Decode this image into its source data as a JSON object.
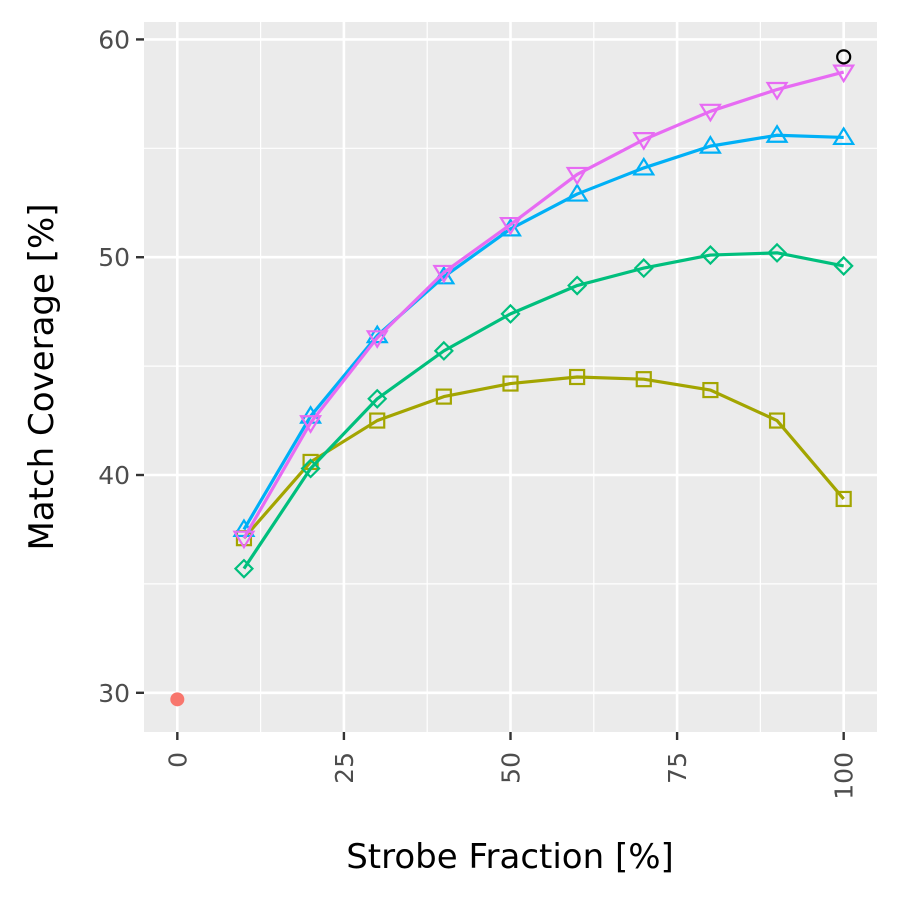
{
  "chart_data": {
    "type": "line",
    "title": "",
    "xlabel": "Strobe Fraction [%]",
    "ylabel": "Match Coverage [%]",
    "xlim": [
      -5,
      105
    ],
    "ylim": [
      28.2,
      60.8
    ],
    "x_ticks": [
      0,
      25,
      50,
      75,
      100
    ],
    "y_ticks": [
      30,
      40,
      50,
      60
    ],
    "x_tick_labels": [
      "0",
      "25",
      "50",
      "75",
      "100"
    ],
    "y_tick_labels": [
      "30",
      "40",
      "50",
      "60"
    ],
    "grid": true,
    "panel_background": "#ebebeb",
    "legend": "none",
    "series": [
      {
        "marker": "square",
        "color": "#a3a500",
        "x": [
          10,
          20,
          30,
          40,
          50,
          60,
          70,
          80,
          90,
          100
        ],
        "y": [
          37.1,
          40.6,
          42.5,
          43.6,
          44.2,
          44.5,
          44.4,
          43.9,
          42.5,
          38.9
        ]
      },
      {
        "marker": "diamond",
        "color": "#00bf7d",
        "x": [
          10,
          20,
          30,
          40,
          50,
          60,
          70,
          80,
          90,
          100
        ],
        "y": [
          35.7,
          40.3,
          43.5,
          45.7,
          47.4,
          48.7,
          49.5,
          50.1,
          50.2,
          49.6
        ]
      },
      {
        "marker": "triangle-up",
        "color": "#00b0f6",
        "x": [
          10,
          20,
          30,
          40,
          50,
          60,
          70,
          80,
          90,
          100
        ],
        "y": [
          37.5,
          42.7,
          46.4,
          49.1,
          51.3,
          52.9,
          54.1,
          55.1,
          55.6,
          55.5
        ]
      },
      {
        "marker": "triangle-down",
        "color": "#e76bf3",
        "x": [
          10,
          20,
          30,
          40,
          50,
          60,
          70,
          80,
          90,
          100
        ],
        "y": [
          37.1,
          42.4,
          46.3,
          49.3,
          51.5,
          53.8,
          55.4,
          56.7,
          57.7,
          58.5
        ]
      },
      {
        "marker": "dot",
        "color": "#f8766d",
        "x": [
          0
        ],
        "y": [
          29.7
        ]
      },
      {
        "marker": "circle",
        "color": "#000000",
        "x": [
          100
        ],
        "y": [
          59.2
        ]
      }
    ]
  }
}
